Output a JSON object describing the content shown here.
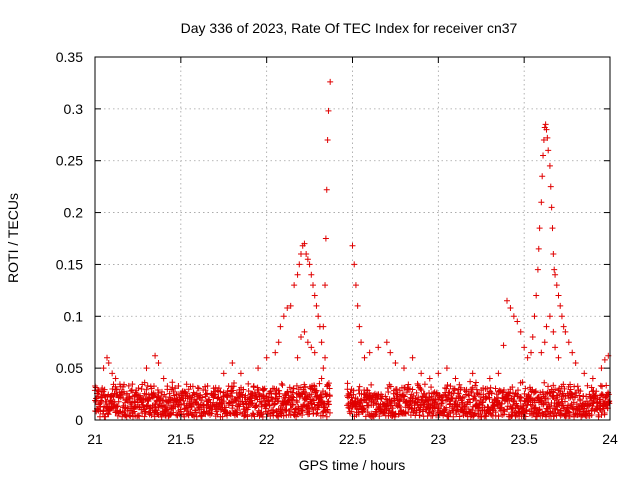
{
  "chart_data": {
    "type": "scatter",
    "title": "Day 336 of 2023, Rate Of TEC Index for receiver cn37",
    "xlabel": "GPS time / hours",
    "ylabel": "ROTI / TECUs",
    "xlim": [
      21,
      24
    ],
    "ylim": [
      0,
      0.35
    ],
    "xticks": [
      21,
      21.5,
      22,
      22.5,
      23,
      23.5,
      24
    ],
    "xtick_labels": [
      "21",
      "21.5",
      "22",
      "22.5",
      "23",
      "23.5",
      "24"
    ],
    "yticks": [
      0,
      0.05,
      0.1,
      0.15,
      0.2,
      0.25,
      0.3,
      0.35
    ],
    "ytick_labels": [
      "0",
      "0.05",
      "0.1",
      "0.15",
      "0.2",
      "0.25",
      "0.3",
      "0.35"
    ],
    "grid": true,
    "marker": "+",
    "marker_color": "#e00000",
    "series": [
      {
        "name": "ROTI",
        "points": [
          [
            21.05,
            0.05
          ],
          [
            21.07,
            0.06
          ],
          [
            21.08,
            0.055
          ],
          [
            21.1,
            0.045
          ],
          [
            21.12,
            0.04
          ],
          [
            21.3,
            0.05
          ],
          [
            21.35,
            0.062
          ],
          [
            21.37,
            0.055
          ],
          [
            21.4,
            0.04
          ],
          [
            21.75,
            0.045
          ],
          [
            21.8,
            0.055
          ],
          [
            21.85,
            0.045
          ],
          [
            21.95,
            0.05
          ],
          [
            22.0,
            0.06
          ],
          [
            22.05,
            0.065
          ],
          [
            22.07,
            0.075
          ],
          [
            22.08,
            0.09
          ],
          [
            22.1,
            0.1
          ],
          [
            22.12,
            0.108
          ],
          [
            22.14,
            0.11
          ],
          [
            22.16,
            0.13
          ],
          [
            22.18,
            0.14
          ],
          [
            22.19,
            0.15
          ],
          [
            22.2,
            0.16
          ],
          [
            22.21,
            0.168
          ],
          [
            22.22,
            0.17
          ],
          [
            22.23,
            0.16
          ],
          [
            22.24,
            0.155
          ],
          [
            22.25,
            0.15
          ],
          [
            22.26,
            0.14
          ],
          [
            22.27,
            0.13
          ],
          [
            22.28,
            0.12
          ],
          [
            22.29,
            0.11
          ],
          [
            22.3,
            0.1
          ],
          [
            22.31,
            0.09
          ],
          [
            22.18,
            0.06
          ],
          [
            22.2,
            0.08
          ],
          [
            22.22,
            0.085
          ],
          [
            22.24,
            0.075
          ],
          [
            22.26,
            0.07
          ],
          [
            22.28,
            0.065
          ],
          [
            22.32,
            0.075
          ],
          [
            22.33,
            0.09
          ],
          [
            22.34,
            0.13
          ],
          [
            22.345,
            0.175
          ],
          [
            22.35,
            0.222
          ],
          [
            22.355,
            0.27
          ],
          [
            22.36,
            0.298
          ],
          [
            22.37,
            0.326
          ],
          [
            22.32,
            0.04
          ],
          [
            22.33,
            0.05
          ],
          [
            22.34,
            0.06
          ],
          [
            22.5,
            0.168
          ],
          [
            22.51,
            0.15
          ],
          [
            22.52,
            0.13
          ],
          [
            22.53,
            0.11
          ],
          [
            22.54,
            0.09
          ],
          [
            22.55,
            0.075
          ],
          [
            22.57,
            0.06
          ],
          [
            22.6,
            0.065
          ],
          [
            22.65,
            0.07
          ],
          [
            22.7,
            0.075
          ],
          [
            22.72,
            0.065
          ],
          [
            22.75,
            0.055
          ],
          [
            22.8,
            0.05
          ],
          [
            22.85,
            0.06
          ],
          [
            22.9,
            0.045
          ],
          [
            22.95,
            0.04
          ],
          [
            23.0,
            0.045
          ],
          [
            23.05,
            0.05
          ],
          [
            23.1,
            0.04
          ],
          [
            23.2,
            0.045
          ],
          [
            23.3,
            0.04
          ],
          [
            23.35,
            0.045
          ],
          [
            23.38,
            0.072
          ],
          [
            23.4,
            0.115
          ],
          [
            23.42,
            0.108
          ],
          [
            23.44,
            0.1
          ],
          [
            23.46,
            0.095
          ],
          [
            23.48,
            0.085
          ],
          [
            23.5,
            0.07
          ],
          [
            23.52,
            0.06
          ],
          [
            23.54,
            0.065
          ],
          [
            23.55,
            0.08
          ],
          [
            23.56,
            0.1
          ],
          [
            23.57,
            0.12
          ],
          [
            23.58,
            0.145
          ],
          [
            23.585,
            0.165
          ],
          [
            23.59,
            0.185
          ],
          [
            23.6,
            0.21
          ],
          [
            23.605,
            0.235
          ],
          [
            23.61,
            0.255
          ],
          [
            23.615,
            0.27
          ],
          [
            23.62,
            0.282
          ],
          [
            23.625,
            0.285
          ],
          [
            23.63,
            0.28
          ],
          [
            23.635,
            0.272
          ],
          [
            23.64,
            0.26
          ],
          [
            23.65,
            0.245
          ],
          [
            23.655,
            0.225
          ],
          [
            23.66,
            0.205
          ],
          [
            23.665,
            0.185
          ],
          [
            23.67,
            0.16
          ],
          [
            23.675,
            0.145
          ],
          [
            23.68,
            0.14
          ],
          [
            23.69,
            0.13
          ],
          [
            23.7,
            0.12
          ],
          [
            23.71,
            0.11
          ],
          [
            23.72,
            0.1
          ],
          [
            23.73,
            0.09
          ],
          [
            23.74,
            0.085
          ],
          [
            23.76,
            0.075
          ],
          [
            23.78,
            0.065
          ],
          [
            23.8,
            0.055
          ],
          [
            23.6,
            0.065
          ],
          [
            23.62,
            0.075
          ],
          [
            23.63,
            0.09
          ],
          [
            23.65,
            0.1
          ],
          [
            23.67,
            0.085
          ],
          [
            23.68,
            0.07
          ],
          [
            23.7,
            0.06
          ],
          [
            23.85,
            0.045
          ],
          [
            23.9,
            0.04
          ],
          [
            23.95,
            0.05
          ],
          [
            23.97,
            0.058
          ],
          [
            23.99,
            0.062
          ]
        ]
      }
    ],
    "dense_band": {
      "description_values": "dense cluster of points from x=21.0 to 24.0 between ROTI 0.0 and about 0.035",
      "x_range": [
        21.0,
        24.0
      ],
      "y_range": [
        0.0,
        0.035
      ],
      "gap_x_range": [
        22.37,
        22.47
      ]
    }
  }
}
